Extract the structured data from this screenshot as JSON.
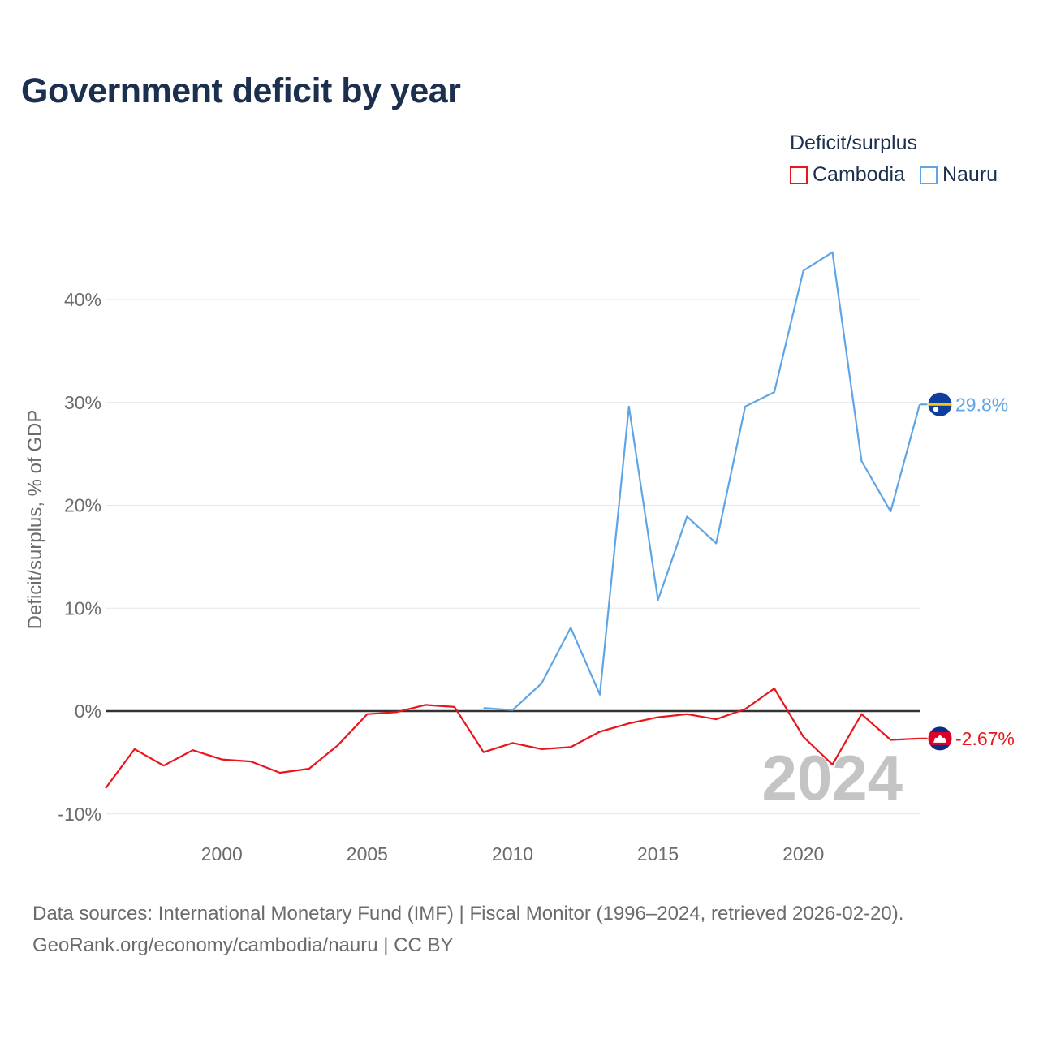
{
  "chart_data": {
    "type": "line",
    "title": "Government deficit by year",
    "ylabel": "Deficit/surplus, % of GDP",
    "xlabel": "",
    "xlim": [
      1996,
      2024
    ],
    "ylim": [
      -10,
      47
    ],
    "y_ticks": [
      -10,
      0,
      10,
      20,
      30,
      40
    ],
    "y_tick_labels": [
      "-10%",
      "0%",
      "10%",
      "20%",
      "30%",
      "40%"
    ],
    "x_ticks": [
      2000,
      2005,
      2010,
      2015,
      2020
    ],
    "x_tick_labels": [
      "2000",
      "2005",
      "2010",
      "2015",
      "2020"
    ],
    "legend_title": "Deficit/surplus",
    "legend_position": "top-right",
    "year_watermark": "2024",
    "series": [
      {
        "name": "Cambodia",
        "color": "#e8151b",
        "end_label": "-2.67%",
        "flag": "cambodia-flag",
        "points": [
          [
            1996,
            -7.5
          ],
          [
            1997,
            -3.7
          ],
          [
            1998,
            -5.3
          ],
          [
            1999,
            -3.8
          ],
          [
            2000,
            -4.7
          ],
          [
            2001,
            -4.9
          ],
          [
            2002,
            -6.0
          ],
          [
            2003,
            -5.6
          ],
          [
            2004,
            -3.3
          ],
          [
            2005,
            -0.3
          ],
          [
            2006,
            -0.1
          ],
          [
            2007,
            0.6
          ],
          [
            2008,
            0.4
          ],
          [
            2009,
            -4.0
          ],
          [
            2010,
            -3.1
          ],
          [
            2011,
            -3.7
          ],
          [
            2012,
            -3.5
          ],
          [
            2013,
            -2.0
          ],
          [
            2014,
            -1.2
          ],
          [
            2015,
            -0.6
          ],
          [
            2016,
            -0.3
          ],
          [
            2017,
            -0.8
          ],
          [
            2018,
            0.2
          ],
          [
            2019,
            2.2
          ],
          [
            2020,
            -2.5
          ],
          [
            2021,
            -5.2
          ],
          [
            2022,
            -0.3
          ],
          [
            2023,
            -2.8
          ],
          [
            2024,
            -2.67
          ]
        ]
      },
      {
        "name": "Nauru",
        "color": "#5ea5e6",
        "end_label": "29.8%",
        "flag": "nauru-flag",
        "points": [
          [
            2009,
            0.3
          ],
          [
            2010,
            0.1
          ],
          [
            2011,
            2.7
          ],
          [
            2012,
            8.1
          ],
          [
            2013,
            1.6
          ],
          [
            2014,
            29.6
          ],
          [
            2015,
            10.8
          ],
          [
            2016,
            18.9
          ],
          [
            2017,
            16.3
          ],
          [
            2018,
            29.6
          ],
          [
            2019,
            31.0
          ],
          [
            2020,
            42.8
          ],
          [
            2021,
            44.6
          ],
          [
            2022,
            24.3
          ],
          [
            2023,
            19.4
          ],
          [
            2024,
            29.8
          ]
        ]
      }
    ]
  },
  "source": {
    "line1": "Data sources: International Monetary Fund (IMF) | Fiscal Monitor (1996–2024, retrieved 2026-02-20).",
    "line2": "GeoRank.org/economy/cambodia/nauru | CC BY"
  }
}
